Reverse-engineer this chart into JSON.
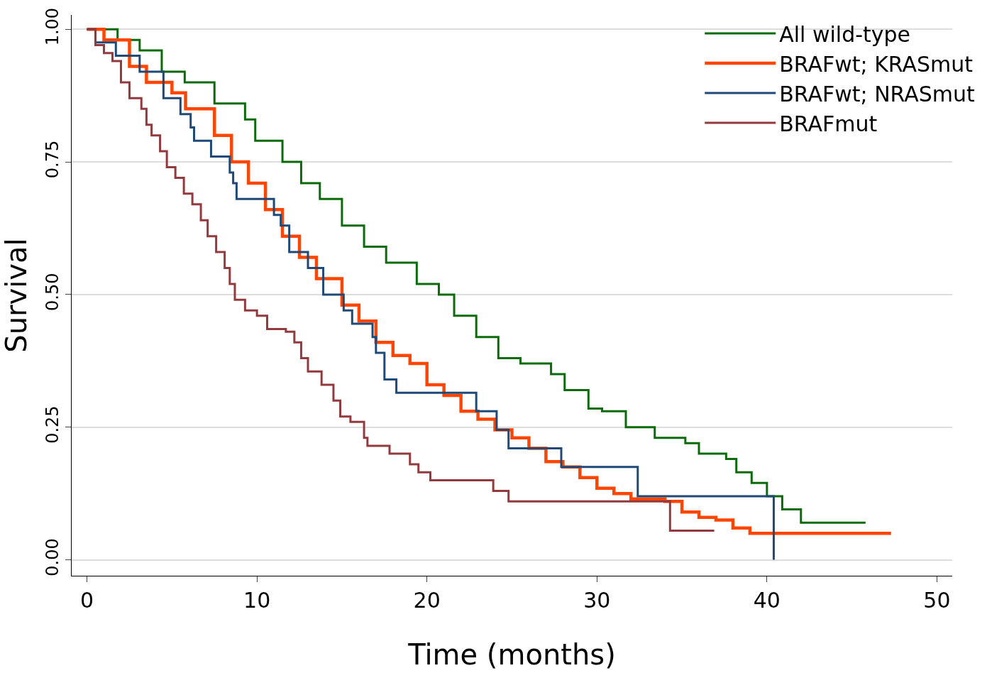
{
  "chart_data": {
    "type": "step",
    "xlabel": "Time (months)",
    "ylabel": "Survival",
    "xlim": [
      -0.9,
      50.9
    ],
    "ylim": [
      -0.03,
      1.027
    ],
    "xticks": [
      0,
      10,
      20,
      30,
      40,
      50
    ],
    "yticks": [
      {
        "value": 0,
        "label": "0.00"
      },
      {
        "value": 0.25,
        "label": "0.25"
      },
      {
        "value": 0.5,
        "label": "0.50"
      },
      {
        "value": 0.75,
        "label": "0.75"
      },
      {
        "value": 1,
        "label": "1.00"
      }
    ],
    "grid": "y",
    "legend": "top right",
    "line_style": "solid",
    "marker": "none",
    "series": [
      {
        "name": "All wild-type",
        "color": "#0b6b0b",
        "x": [
          0,
          1.8,
          3.1,
          4.4,
          5.75,
          7.5,
          9.3,
          9.9,
          11.5,
          12.6,
          13.7,
          15,
          16.3,
          17.6,
          19.4,
          20.7,
          21.6,
          22.9,
          24.2,
          25.5,
          27.3,
          28.1,
          29.5,
          30.3,
          31.7,
          33.4,
          35.2,
          36,
          37.6,
          38.2,
          39.1,
          40,
          40.9,
          42,
          45.8
        ],
        "values": [
          1.0,
          0.98,
          0.96,
          0.92,
          0.9,
          0.86,
          0.83,
          0.79,
          0.75,
          0.71,
          0.68,
          0.63,
          0.59,
          0.56,
          0.52,
          0.5,
          0.46,
          0.42,
          0.38,
          0.37,
          0.35,
          0.32,
          0.285,
          0.28,
          0.25,
          0.23,
          0.22,
          0.2,
          0.19,
          0.165,
          0.145,
          0.12,
          0.095,
          0.07,
          0.07
        ]
      },
      {
        "name": "BRAFwt; KRASmut",
        "color": "#ff4500",
        "x": [
          0,
          1,
          2.5,
          3.5,
          5,
          5.8,
          7.5,
          8.5,
          9.5,
          10.5,
          11.5,
          12.5,
          13.5,
          15,
          16,
          17,
          18,
          19,
          20,
          21,
          22,
          23,
          24,
          25,
          26,
          27,
          28,
          29,
          30,
          31,
          32,
          34,
          35,
          36,
          37,
          38,
          39,
          47.3
        ],
        "values": [
          1.0,
          0.98,
          0.93,
          0.9,
          0.88,
          0.85,
          0.8,
          0.75,
          0.71,
          0.66,
          0.61,
          0.57,
          0.53,
          0.48,
          0.45,
          0.41,
          0.385,
          0.37,
          0.33,
          0.31,
          0.28,
          0.265,
          0.245,
          0.23,
          0.21,
          0.185,
          0.175,
          0.155,
          0.135,
          0.125,
          0.115,
          0.11,
          0.09,
          0.08,
          0.075,
          0.06,
          0.05,
          0.05
        ]
      },
      {
        "name": "BRAFwt; NRASmut",
        "color": "#1f4a78",
        "x": [
          0,
          0.5,
          1.7,
          3.1,
          4.5,
          5.5,
          6.1,
          6.3,
          7.3,
          8.4,
          8.6,
          8.8,
          11.0,
          11.4,
          11.9,
          13.0,
          13.9,
          15.1,
          15.6,
          16.8,
          17.0,
          17.5,
          18.2,
          22.9,
          24.1,
          24.8,
          27.9,
          32.4,
          40.4
        ],
        "values": [
          1.0,
          0.975,
          0.95,
          0.92,
          0.87,
          0.84,
          0.815,
          0.79,
          0.76,
          0.73,
          0.71,
          0.68,
          0.65,
          0.63,
          0.58,
          0.55,
          0.5,
          0.47,
          0.445,
          0.42,
          0.39,
          0.34,
          0.315,
          0.28,
          0.245,
          0.21,
          0.175,
          0.12,
          0.0
        ]
      },
      {
        "name": "BRAFmut",
        "color": "#933a3e",
        "x": [
          0,
          0.5,
          1.0,
          1.5,
          2,
          2.5,
          3.2,
          3.5,
          3.8,
          4.3,
          4.7,
          5.2,
          5.7,
          6.2,
          6.7,
          7.1,
          7.6,
          8.1,
          8.4,
          8.7,
          9.3,
          10,
          10.6,
          11.7,
          12.2,
          12.6,
          13,
          13.8,
          14.5,
          14.9,
          15.5,
          16.3,
          16.5,
          17.8,
          19,
          19.5,
          20.2,
          23.9,
          24.8,
          34.3,
          36.9
        ],
        "values": [
          1.0,
          0.97,
          0.955,
          0.94,
          0.9,
          0.87,
          0.85,
          0.82,
          0.8,
          0.77,
          0.74,
          0.72,
          0.69,
          0.67,
          0.64,
          0.61,
          0.58,
          0.55,
          0.52,
          0.49,
          0.47,
          0.46,
          0.435,
          0.43,
          0.41,
          0.38,
          0.355,
          0.33,
          0.3,
          0.27,
          0.26,
          0.23,
          0.215,
          0.2,
          0.18,
          0.165,
          0.15,
          0.13,
          0.11,
          0.055,
          0.055
        ]
      }
    ]
  }
}
